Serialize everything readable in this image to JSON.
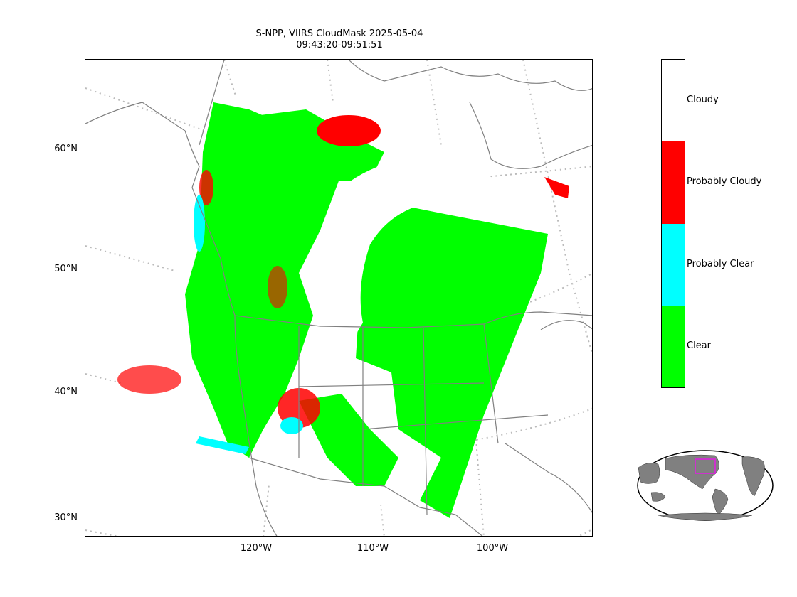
{
  "title": {
    "line1": "S-NPP, VIIRS CloudMask 2025-05-04",
    "line2": "09:43:20-09:51:51"
  },
  "axes": {
    "lat_labels": [
      "60°N",
      "50°N",
      "40°N",
      "30°N"
    ],
    "lon_labels": [
      "120°W",
      "110°W",
      "100°W"
    ]
  },
  "legend": {
    "entries": [
      {
        "label": "Cloudy",
        "color": "#ffffff"
      },
      {
        "label": "Probably Cloudy",
        "color": "#ff0000"
      },
      {
        "label": "Probably Clear",
        "color": "#00ffff"
      },
      {
        "label": "Clear",
        "color": "#00ff00"
      }
    ]
  },
  "colors": {
    "clear": "#00ff00",
    "probably_clear": "#00ffff",
    "probably_cloudy": "#ff0000",
    "cloudy": "#ffffff",
    "coastline": "#808080",
    "graticule": "#bbbbbb",
    "inset_land": "#808080",
    "inset_box": "#cc33cc"
  }
}
